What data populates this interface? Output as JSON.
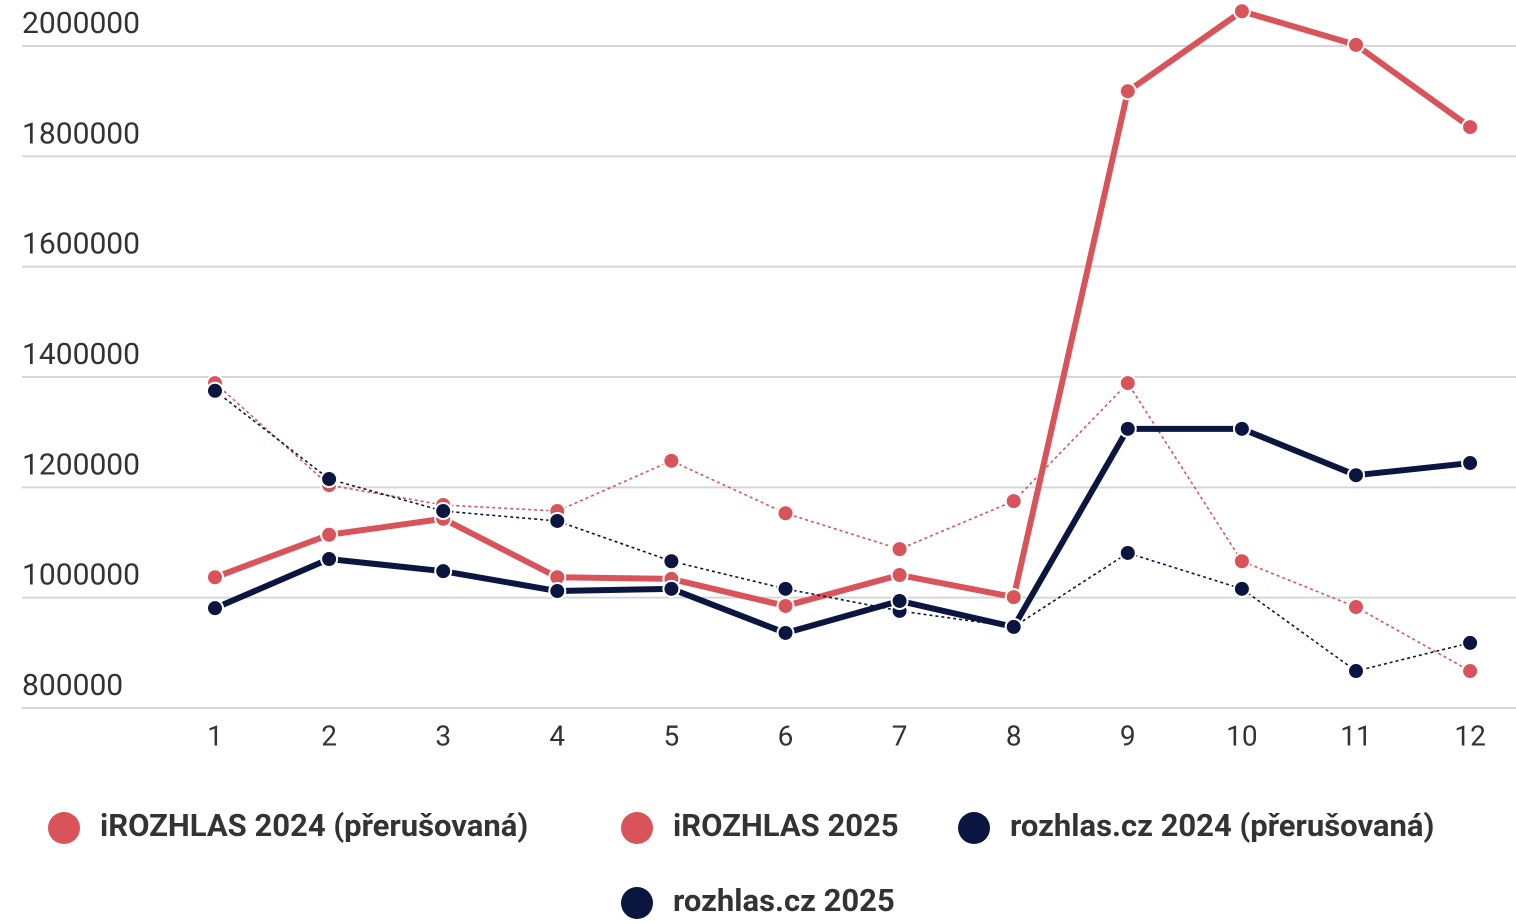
{
  "chart_data": {
    "type": "line",
    "categories": [
      "1",
      "2",
      "3",
      "4",
      "5",
      "6",
      "7",
      "8",
      "9",
      "10",
      "11",
      "12"
    ],
    "series": [
      {
        "name": "iROZHLAS 2024 (přerušovaná)",
        "color": "#d9545a",
        "line_style": "dashed",
        "values": [
          1389000,
          1204000,
          1168000,
          1157000,
          1248000,
          1153000,
          1088000,
          1175000,
          1389000,
          1066000,
          983000,
          867000
        ]
      },
      {
        "name": "iROZHLAS 2025",
        "color": "#d9545a",
        "line_style": "solid",
        "values": [
          1037000,
          1114000,
          1143000,
          1037000,
          1034000,
          985000,
          1041000,
          1001000,
          1918000,
          2063000,
          2002000,
          1853000
        ]
      },
      {
        "name": "rozhlas.cz 2024 (přerušovaná)",
        "color": "#0b1640",
        "line_style": "dashed",
        "values": [
          1375000,
          1215000,
          1157000,
          1139000,
          1066000,
          1016000,
          976000,
          947000,
          1081000,
          1016000,
          867000,
          918000
        ]
      },
      {
        "name": "rozhlas.cz 2025",
        "color": "#0b1640",
        "line_style": "solid",
        "values": [
          981000,
          1070000,
          1048000,
          1012000,
          1016000,
          936000,
          994000,
          947000,
          1306000,
          1306000,
          1222000,
          1244000
        ]
      }
    ],
    "ylim": [
      800000,
      2000000
    ],
    "yticks": [
      800000,
      1000000,
      1200000,
      1400000,
      1600000,
      1800000,
      2000000
    ],
    "grid": true,
    "legend": "bottom"
  }
}
